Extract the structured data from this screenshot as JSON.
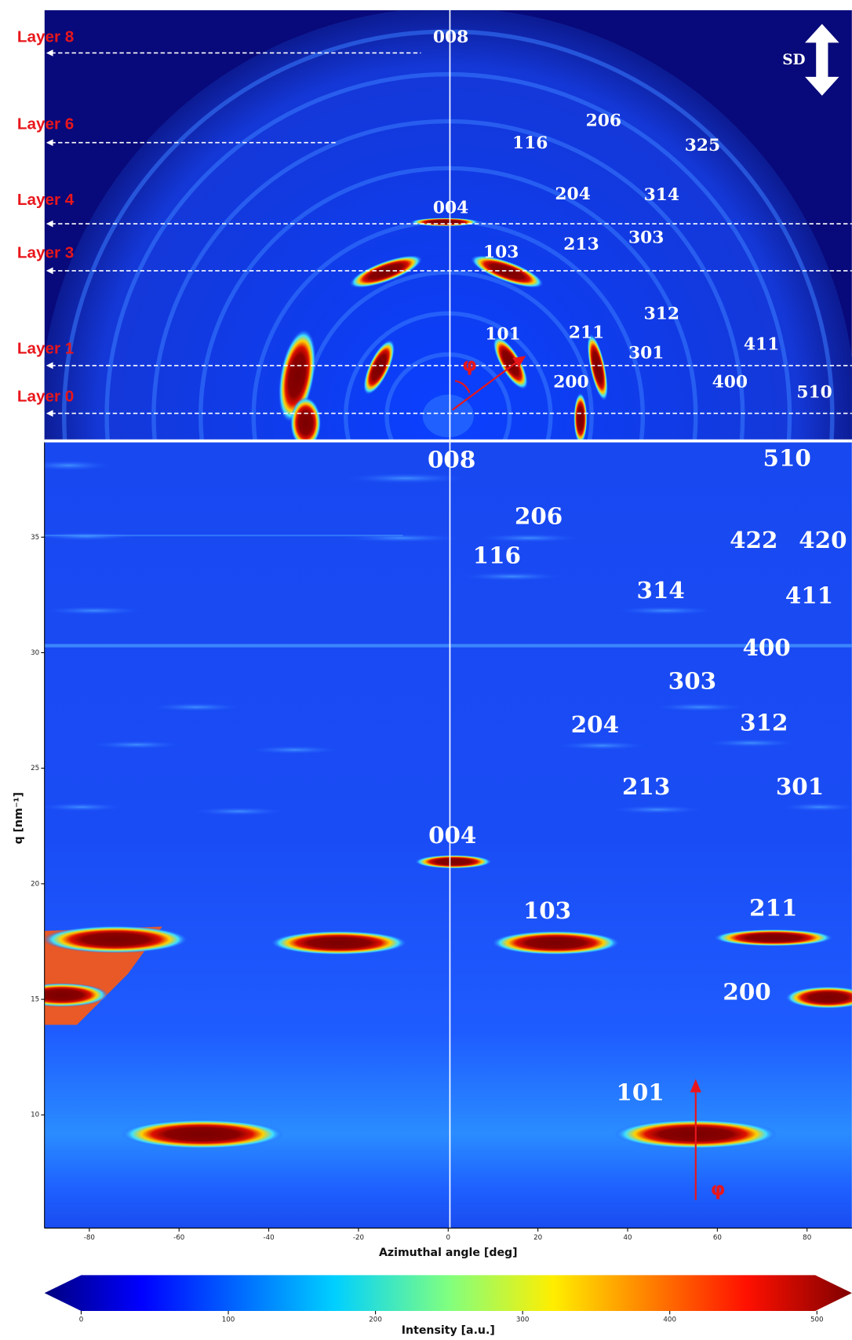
{
  "chart_data": [
    {
      "type": "image",
      "layers": [
        "Layer 8",
        "Layer 6",
        "Layer 4",
        "Layer 3",
        "Layer 1",
        "Layer 0"
      ],
      "reflections": [
        "008",
        "206",
        "116",
        "325",
        "204",
        "314",
        "004",
        "213",
        "303",
        "103",
        "312",
        "101",
        "211",
        "301",
        "411",
        "200",
        "400",
        "510"
      ],
      "direction": "SD",
      "angle": "φ"
    },
    {
      "type": "heatmap",
      "xlabel": "Azimuthal angle [deg]",
      "ylabel": "q [nm⁻¹]",
      "xlim": [
        -90,
        90
      ],
      "ylim": [
        5.1,
        39.1
      ],
      "xticks": [
        -80,
        -60,
        -40,
        -20,
        0,
        20,
        40,
        60,
        80
      ],
      "yticks": [
        10,
        15,
        20,
        25,
        30,
        35
      ],
      "reflections": [
        "008",
        "510",
        "206",
        "422",
        "420",
        "116",
        "314",
        "411",
        "400",
        "303",
        "204",
        "312",
        "213",
        "301",
        "004",
        "103",
        "211",
        "200",
        "101"
      ],
      "angle": "φ",
      "colorbar": {
        "label": "Intensity [a.u.]",
        "colormap": "jet",
        "lim": [
          0,
          500
        ],
        "ticks": [
          0,
          100,
          200,
          300,
          400,
          500
        ]
      }
    }
  ]
}
